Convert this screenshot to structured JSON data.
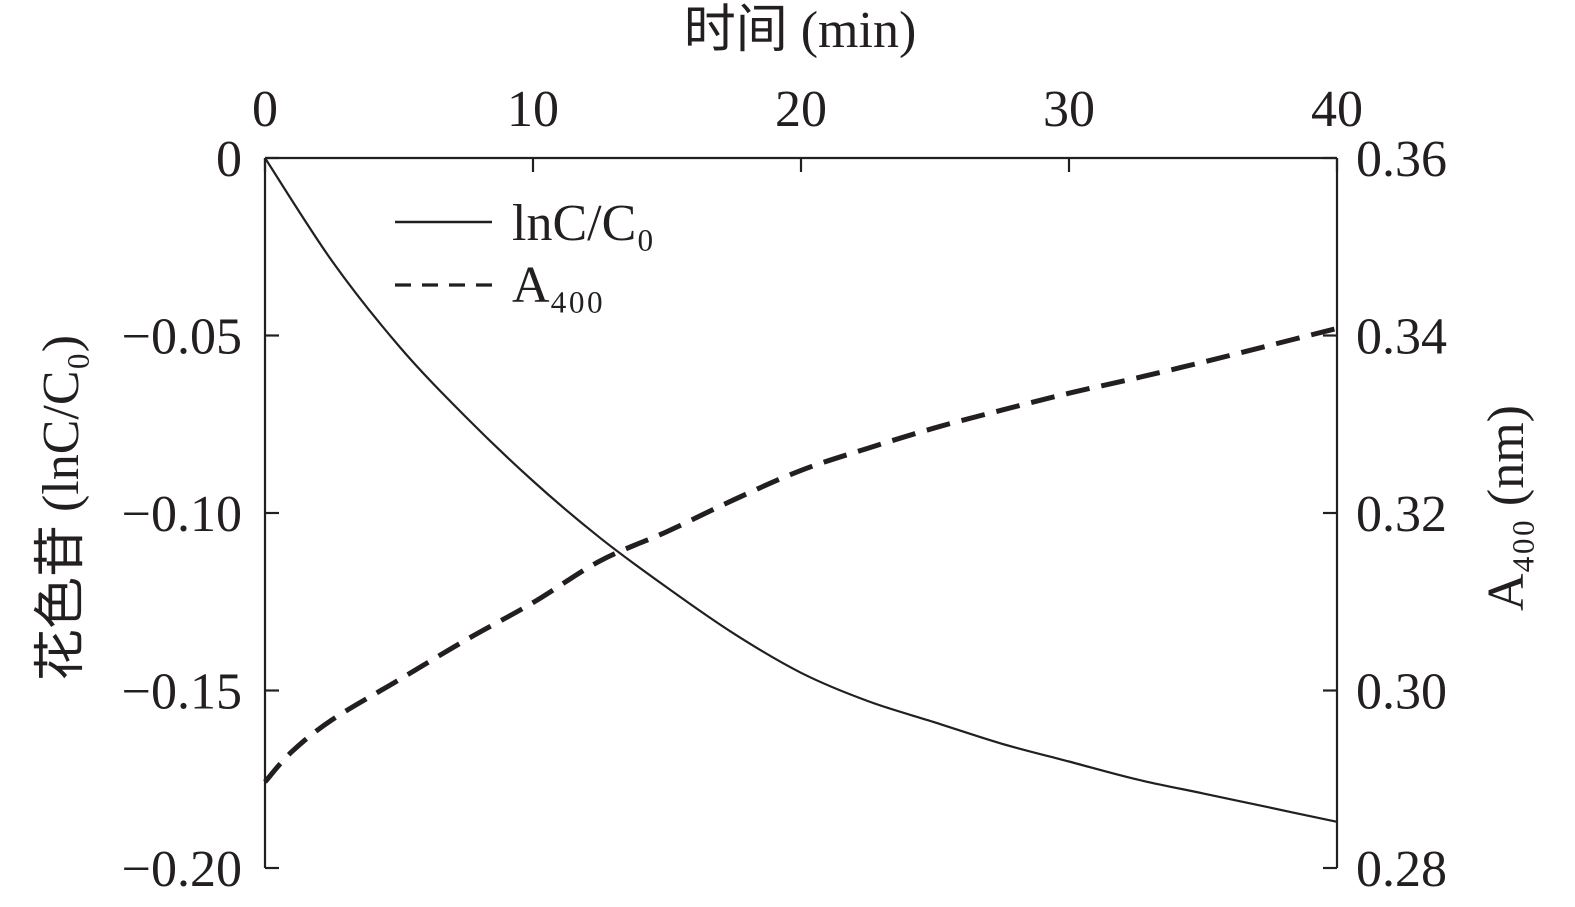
{
  "chart_data": {
    "type": "line",
    "x_axis": {
      "label": "时间 (min)",
      "position": "top",
      "range": [
        0,
        40
      ],
      "ticks": [
        0,
        10,
        20,
        30,
        40
      ],
      "tick_labels": [
        "0",
        "10",
        "20",
        "30",
        "40"
      ]
    },
    "y_left": {
      "label": "花色苷 (lnC/C₀)",
      "range": [
        -0.2,
        0
      ],
      "ticks": [
        0,
        -0.05,
        -0.1,
        -0.15,
        -0.2
      ],
      "tick_labels": [
        "0",
        "−0.05",
        "−0.10",
        "−0.15",
        "−0.20"
      ]
    },
    "y_right": {
      "label": "A₄₀₀ (nm)",
      "range": [
        0.28,
        0.36
      ],
      "ticks": [
        0.36,
        0.34,
        0.32,
        0.3,
        0.28
      ],
      "tick_labels": [
        "0.36",
        "0.34",
        "0.32",
        "0.30",
        "0.28"
      ]
    },
    "grid": false,
    "legend": {
      "placement": "top-left"
    },
    "series": [
      {
        "name": "lnC/C₀",
        "axis": "left",
        "line_style": "solid",
        "color": "#231f20",
        "x": [
          0,
          2.5,
          5,
          7.5,
          10,
          12.5,
          15,
          17.5,
          20,
          22.5,
          25,
          27.5,
          30,
          32.5,
          35,
          37.5,
          40
        ],
        "y": [
          0,
          -0.029,
          -0.053,
          -0.073,
          -0.091,
          -0.107,
          -0.121,
          -0.134,
          -0.145,
          -0.153,
          -0.159,
          -0.165,
          -0.17,
          -0.175,
          -0.179,
          -0.183,
          -0.187
        ]
      },
      {
        "name": "A₄₀₀",
        "axis": "right",
        "line_style": "dashed",
        "color": "#231f20",
        "x": [
          0,
          1,
          2.5,
          5,
          7.5,
          10,
          12.5,
          15,
          17.5,
          20,
          22.5,
          25,
          27.5,
          30,
          32.5,
          35,
          37.5,
          40
        ],
        "y": [
          0.2897,
          0.2931,
          0.2967,
          0.3012,
          0.3057,
          0.3099,
          0.3146,
          0.3179,
          0.3215,
          0.3248,
          0.3273,
          0.3296,
          0.3316,
          0.3335,
          0.3352,
          0.337,
          0.3389,
          0.3408
        ]
      }
    ]
  }
}
